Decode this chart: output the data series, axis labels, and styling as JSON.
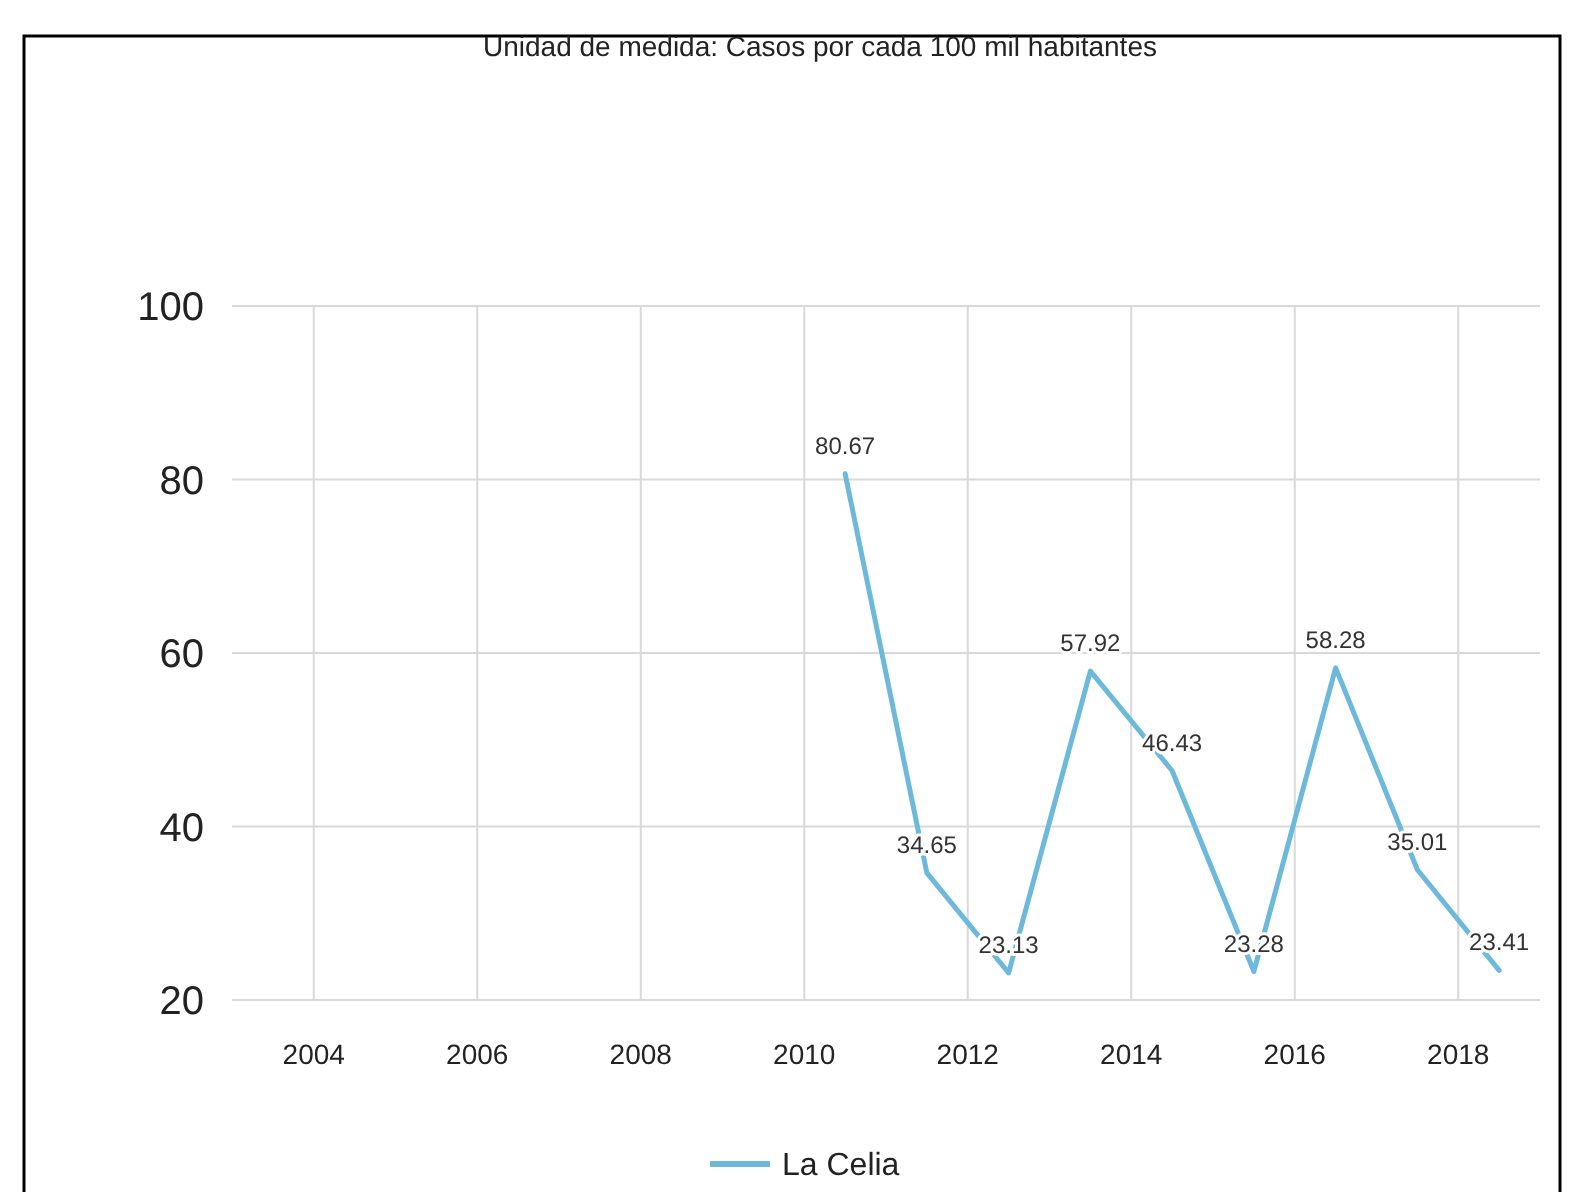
{
  "chart_data": {
    "type": "line",
    "title": "Unidad de medida: Casos por cada 100 mil habitantes",
    "x": [
      2010.5,
      2011.5,
      2012.5,
      2013.5,
      2014.5,
      2015.5,
      2016.5,
      2017.5,
      2018.5
    ],
    "series": [
      {
        "name": "La Celia",
        "color": "#6cb9dc",
        "values": [
          80.67,
          34.65,
          23.13,
          57.92,
          46.43,
          23.28,
          58.28,
          35.01,
          23.41
        ]
      }
    ],
    "xlim": [
      2003,
      2019
    ],
    "xticks": [
      2004,
      2006,
      2008,
      2010,
      2012,
      2014,
      2016,
      2018
    ],
    "ylim": [
      20,
      100
    ],
    "yticks": [
      20,
      40,
      60,
      80,
      100
    ],
    "grid": true,
    "legend": "bottom",
    "data_labels": true,
    "marker": "none",
    "line_style": "solid"
  }
}
